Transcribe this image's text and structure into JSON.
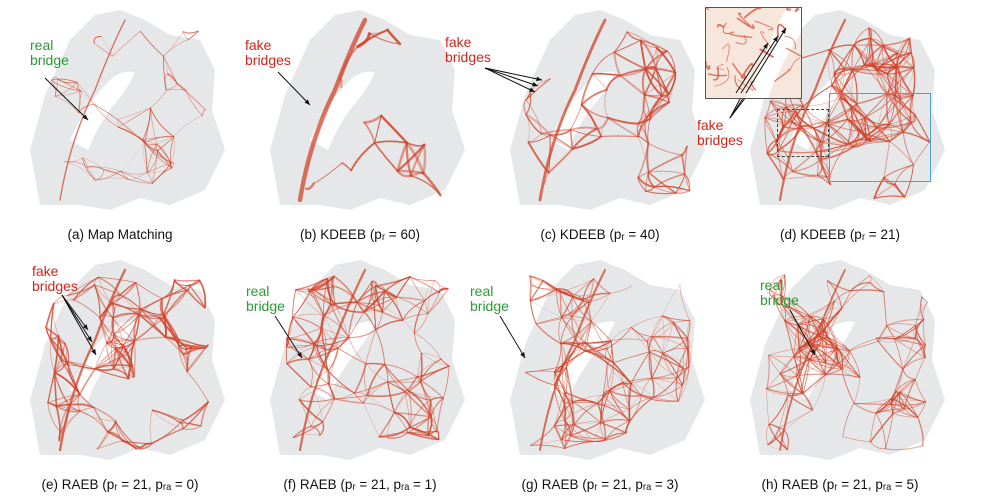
{
  "panels": [
    {
      "id": "a",
      "caption": "(a) Map Matching",
      "note": {
        "text": "real\nbridge",
        "color": "green"
      }
    },
    {
      "id": "b",
      "caption": "(b) KDEEB (pᵣ = 60)",
      "note": {
        "text": "fake\nbridges",
        "color": "red"
      }
    },
    {
      "id": "c",
      "caption": "(c) KDEEB (pᵣ = 40)",
      "note": {
        "text": "fake\nbridges",
        "color": "red"
      }
    },
    {
      "id": "d",
      "caption": "(d) KDEEB (pᵣ = 21)",
      "note": {
        "text": "fake\nbridges",
        "color": "red"
      }
    },
    {
      "id": "e",
      "caption": "(e) RAEB (pᵣ = 21, pᵣₐ = 0)",
      "note": {
        "text": "fake\nbridges",
        "color": "red"
      }
    },
    {
      "id": "f",
      "caption": "(f) RAEB (pᵣ = 21, pᵣₐ = 1)",
      "note": {
        "text": "real\nbridge",
        "color": "green"
      }
    },
    {
      "id": "g",
      "caption": "(g) RAEB (pᵣ = 21, pᵣₐ = 3)",
      "note": {
        "text": "real\nbridge",
        "color": "green"
      }
    },
    {
      "id": "h",
      "caption": "(h) RAEB (pᵣ = 21, pᵣₐ = 5)",
      "note": {
        "text": "real\nbridge",
        "color": "green"
      }
    }
  ],
  "colors": {
    "edge": "#d2432a",
    "land": "#cfd3d6",
    "red": "#d2251b",
    "green": "#2b9a35",
    "highlight": "#4aa3d8"
  },
  "icons": {
    "arrow": "arrow-icon",
    "map": "city-map-icon"
  }
}
